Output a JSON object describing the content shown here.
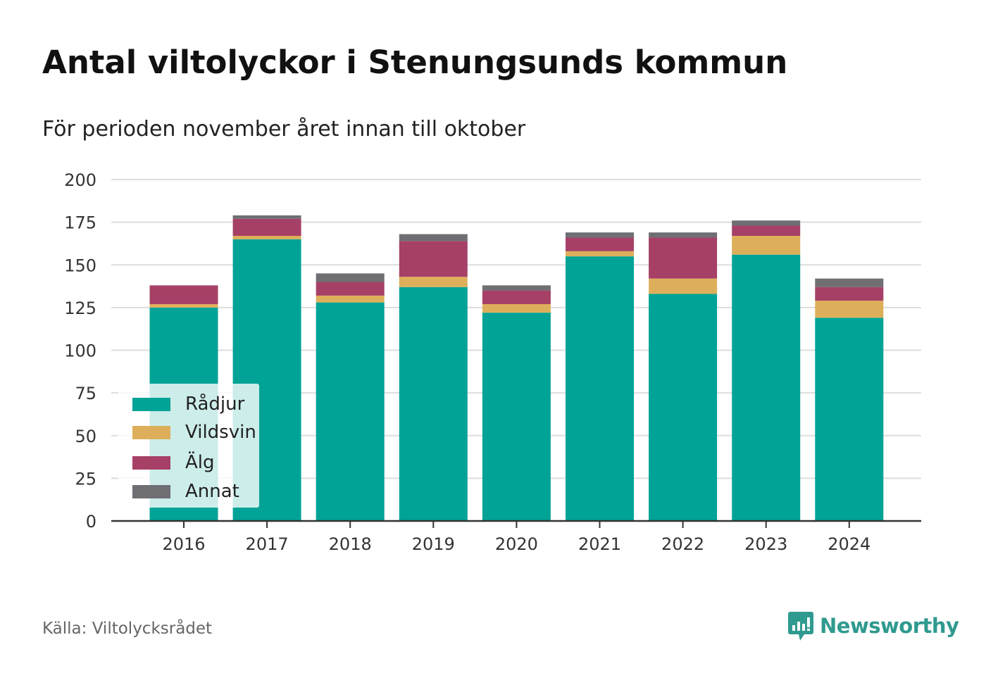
{
  "title": "Antal viltolyckor i Stenungsunds kommun",
  "subtitle": "För perioden november året innan till oktober",
  "source": "Källa: Viltolycksrådet",
  "brand": {
    "name": "Newsworthy",
    "icon": "newsworthy-logo-icon",
    "color": "#2f9a8f"
  },
  "chart_data": {
    "type": "bar",
    "stacked": true,
    "categories": [
      "2016",
      "2017",
      "2018",
      "2019",
      "2020",
      "2021",
      "2022",
      "2023",
      "2024"
    ],
    "series": [
      {
        "name": "Rådjur",
        "color": "#00a396",
        "values": [
          125,
          165,
          128,
          137,
          122,
          155,
          133,
          156,
          119
        ]
      },
      {
        "name": "Vildsvin",
        "color": "#deaf5a",
        "values": [
          2,
          2,
          4,
          6,
          5,
          3,
          9,
          11,
          10
        ]
      },
      {
        "name": "Älg",
        "color": "#a64066",
        "values": [
          11,
          10,
          8,
          21,
          8,
          8,
          24,
          6,
          8
        ]
      },
      {
        "name": "Annat",
        "color": "#6e6e73",
        "values": [
          0,
          2,
          5,
          4,
          3,
          3,
          3,
          3,
          5
        ]
      }
    ],
    "yticks": [
      "0",
      "25",
      "50",
      "75",
      "100",
      "125",
      "150",
      "175",
      "200"
    ],
    "ylim": [
      0,
      200
    ],
    "grid": true,
    "legend_position": "bottom-left"
  }
}
